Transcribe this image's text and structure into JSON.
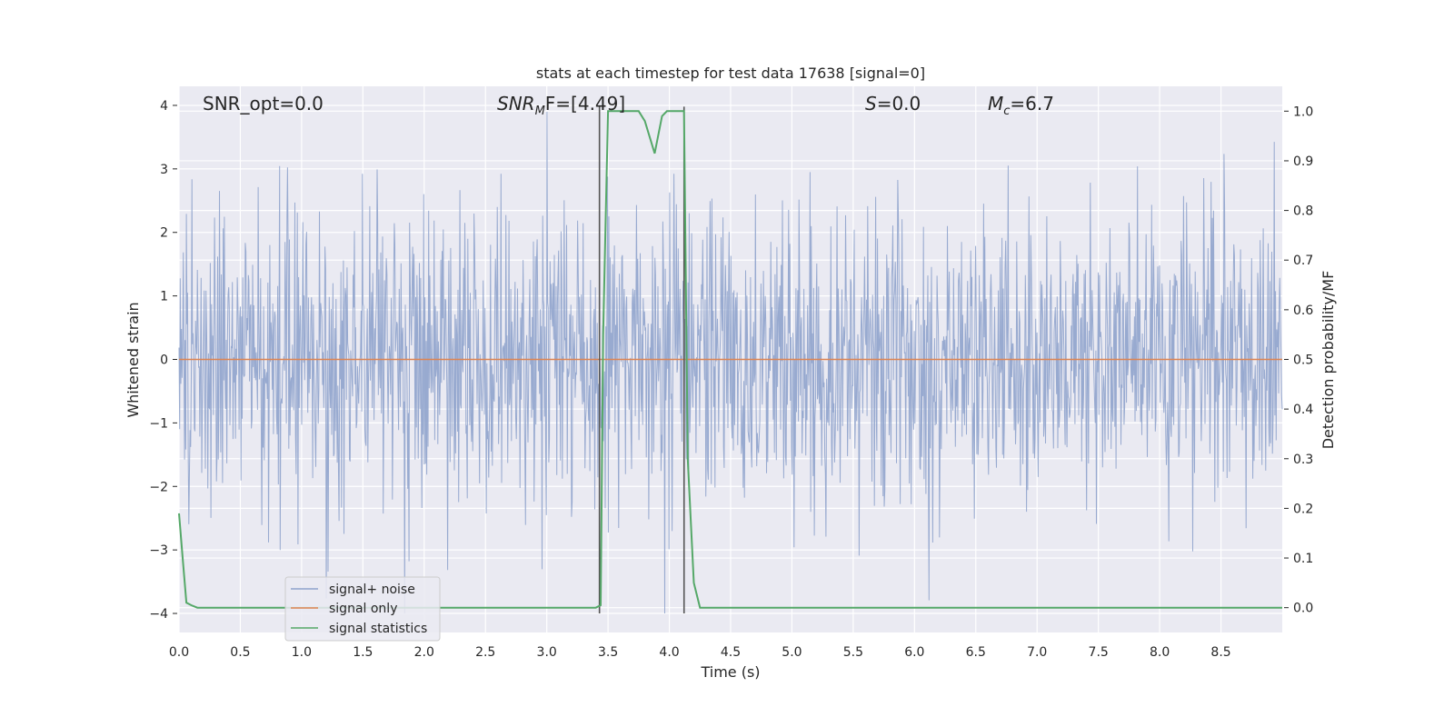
{
  "chart_data": {
    "type": "line",
    "title": "stats at each timestep for test data 17638 [signal=0]",
    "xlabel": "Time (s)",
    "ylabel": "Whitened strain",
    "y2label": "Detection probability/MF",
    "xlim": [
      0,
      9
    ],
    "ylim": [
      -4.3,
      4.3
    ],
    "y2lim": [
      -0.05,
      1.05
    ],
    "xticks": [
      "0.0",
      "0.5",
      "1.0",
      "1.5",
      "2.0",
      "2.5",
      "3.0",
      "3.5",
      "4.0",
      "4.5",
      "5.0",
      "5.5",
      "6.0",
      "6.5",
      "7.0",
      "7.5",
      "8.0",
      "8.5"
    ],
    "yticks": [
      "4",
      "3",
      "2",
      "1",
      "0",
      "−1",
      "−2",
      "−3",
      "−4"
    ],
    "y2ticks": [
      "1.0",
      "0.9",
      "0.8",
      "0.7",
      "0.6",
      "0.5",
      "0.4",
      "0.3",
      "0.2",
      "0.1",
      "0.0"
    ],
    "grid": true,
    "legend_position": "lower-left",
    "annotations": {
      "snr_opt": "SNR_opt=0.0",
      "snr_mf_sym": "SNR",
      "snr_mf_sub": "M",
      "snr_mf_rest": "F=[4.49]",
      "s_sym": "S",
      "s_rest": "=0.0",
      "mc_sym": "M",
      "mc_sub": "c",
      "mc_rest": "=6.7"
    },
    "series": [
      {
        "name": "signal+ noise",
        "color": "#8fa3cc",
        "description_axis": "left",
        "approx_band": {
          "typical_abs": 1.5,
          "peak_range": [
            -4.0,
            3.9
          ]
        }
      },
      {
        "name": "signal only",
        "color": "#dd8452",
        "axis": "left",
        "x": [
          0,
          9
        ],
        "y": [
          0,
          0
        ]
      },
      {
        "name": "signal statistics",
        "color": "#55a868",
        "axis": "right",
        "x": [
          0.0,
          0.03,
          0.06,
          0.1,
          0.15,
          0.5,
          1.0,
          2.0,
          3.0,
          3.4,
          3.44,
          3.46,
          3.5,
          3.55,
          3.6,
          3.7,
          3.75,
          3.8,
          3.88,
          3.94,
          3.98,
          4.05,
          4.12,
          4.15,
          4.2,
          4.25,
          4.3,
          5.0,
          6.0,
          7.0,
          8.0,
          9.0
        ],
        "y": [
          0.19,
          0.1,
          0.01,
          0.005,
          0.0,
          0.0,
          0.0,
          0.0,
          0.0,
          0.0,
          0.005,
          0.55,
          1.0,
          1.0,
          1.0,
          1.0,
          1.0,
          0.98,
          0.915,
          0.99,
          1.0,
          1.0,
          1.0,
          0.3,
          0.05,
          0.0,
          0.0,
          0.0,
          0.0,
          0.0,
          0.0,
          0.0
        ]
      }
    ],
    "vertical_markers": [
      {
        "x": 3.43,
        "color": "#555555",
        "ymin": -4.0,
        "ymax": 3.98
      },
      {
        "x": 4.12,
        "color": "#555555",
        "ymin": -4.0,
        "ymax": 3.98
      }
    ]
  }
}
